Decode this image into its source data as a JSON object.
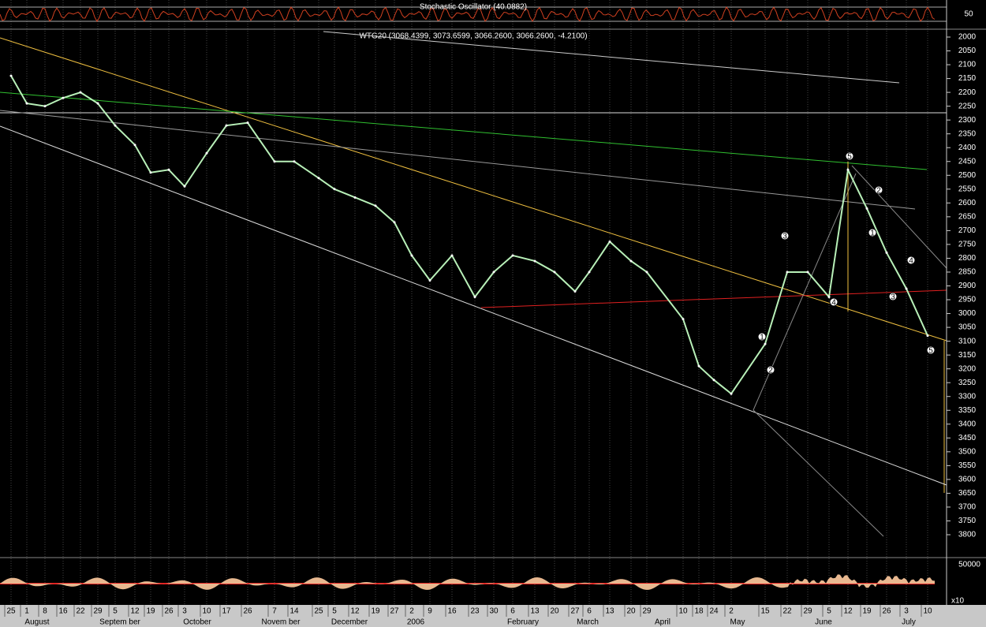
{
  "chart_data": {
    "type": "line",
    "title": "WTG20 (3068.4399, 3073.6599, 3066.2600, 3066.2600, -4.2100)",
    "indicator_title": "Stochastic Oscillator (40.0882)",
    "indicator_label": "50",
    "volume_label": "50000",
    "volume_scale": "x10",
    "categories": [
      "25",
      "1",
      "8",
      "16",
      "22",
      "29",
      "5",
      "12",
      "19",
      "26",
      "3",
      "10",
      "17",
      "26",
      "7",
      "14",
      "25",
      "5",
      "12",
      "19",
      "27",
      "2",
      "9",
      "16",
      "23",
      "30",
      "6",
      "13",
      "20",
      "27",
      "6",
      "13",
      "20",
      "29",
      "10",
      "18",
      "24",
      "2",
      "15",
      "22",
      "29",
      "5",
      "12",
      "19",
      "26",
      "3",
      "10"
    ],
    "months": [
      "August",
      "Septem ber",
      "October",
      "Novem ber",
      "December",
      "2006",
      "February",
      "March",
      "April",
      "May",
      "June",
      "July"
    ],
    "series": [
      {
        "color": "#b8f0b8",
        "values": [
          2140,
          2240,
          2250,
          2220,
          2200,
          2240,
          2320,
          2390,
          2490,
          2480,
          2540,
          2420,
          2320,
          2310,
          2450,
          2450,
          2510,
          2550,
          2580,
          2610,
          2670,
          2790,
          2880,
          2790,
          2940,
          2850,
          2790,
          2810,
          2850,
          2920,
          2850,
          2740,
          2810,
          2850,
          3020,
          3190,
          3240,
          3290,
          3110,
          2850,
          2850,
          2940,
          2480,
          2620,
          2780,
          2910,
          3080
        ]
      }
    ],
    "ylim": [
      3800,
      2000
    ],
    "yticks": [
      2000,
      2050,
      2100,
      2150,
      2200,
      2250,
      2300,
      2350,
      2400,
      2450,
      2500,
      2550,
      2600,
      2650,
      2700,
      2750,
      2800,
      2850,
      2900,
      2950,
      3000,
      3050,
      3100,
      3150,
      3200,
      3250,
      3300,
      3350,
      3400,
      3450,
      3500,
      3550,
      3600,
      3650,
      3700,
      3750,
      3800
    ],
    "annotations": [
      "1",
      "2",
      "3",
      "4",
      "5",
      "1",
      "2",
      "3",
      "4",
      "5"
    ]
  }
}
